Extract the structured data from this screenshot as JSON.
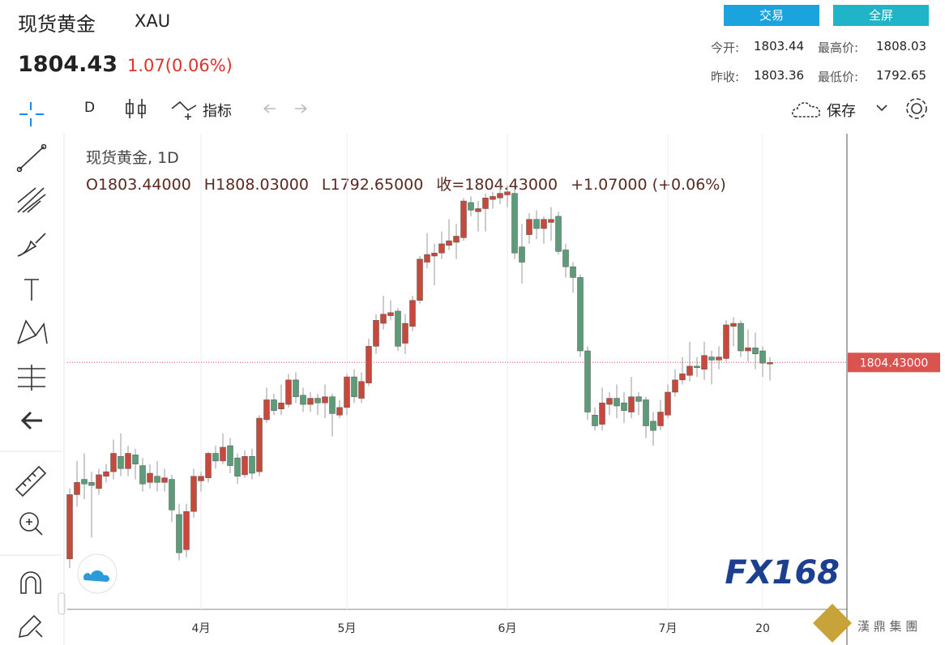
{
  "header": {
    "title": "现货黄金",
    "symbol": "XAU",
    "price": "1804.43",
    "change": "1.07(0.06%)",
    "buttons": [
      "交易",
      "全屏"
    ],
    "stats": [
      [
        "今开:",
        "1803.44",
        "最高价:",
        "1808.03"
      ],
      [
        "昨收:",
        "1803.36",
        "最低价:",
        "1792.65"
      ]
    ]
  },
  "toolbar": {
    "interval": "D",
    "indicators": "指标",
    "save": "保存"
  },
  "watermark": {
    "logo": "FX168",
    "company": "漢 鼎 集 團"
  },
  "chart_data": {
    "type": "candlestick",
    "legend_title": "现货黄金, 1D",
    "ohlc_labels": [
      "O1803.44000",
      "H1808.03000",
      "L1792.65000",
      "收=1804.43000",
      "+1.07000 (+0.06%)"
    ],
    "categories": [
      null,
      null,
      null,
      null,
      null,
      null,
      null,
      null,
      null,
      null,
      null,
      null,
      null,
      null,
      null,
      null,
      null,
      null,
      "4月",
      null,
      null,
      null,
      null,
      null,
      null,
      null,
      null,
      null,
      null,
      null,
      null,
      null,
      null,
      null,
      null,
      null,
      null,
      null,
      "5月",
      null,
      null,
      null,
      null,
      null,
      null,
      null,
      null,
      null,
      null,
      null,
      null,
      null,
      null,
      null,
      null,
      null,
      null,
      null,
      null,
      null,
      "6月",
      null,
      null,
      null,
      null,
      null,
      null,
      null,
      null,
      null,
      null,
      null,
      null,
      null,
      null,
      null,
      null,
      null,
      null,
      null,
      null,
      null,
      "7月",
      null,
      null,
      null,
      null,
      null,
      null,
      null,
      null,
      null,
      null,
      null,
      null,
      "20",
      null
    ],
    "open": [
      1676,
      1718,
      1728,
      1726,
      1722,
      1730,
      1733,
      1743,
      1735,
      1744,
      1737,
      1726,
      1730,
      1726,
      1728,
      1705,
      1682,
      1707,
      1727,
      1729,
      1745,
      1740,
      1750,
      1742,
      1731,
      1743,
      1733,
      1767,
      1780,
      1774,
      1777,
      1793,
      1783,
      1777,
      1781,
      1778,
      1782,
      1770,
      1775,
      1795,
      1781,
      1791,
      1815,
      1830,
      1835,
      1838,
      1817,
      1828,
      1845,
      1870,
      1874,
      1876,
      1881,
      1883,
      1886,
      1909,
      1903,
      1905,
      1911,
      1912,
      1914,
      1915,
      1880,
      1888,
      1898,
      1892,
      1896,
      1900,
      1878,
      1867,
      1860,
      1812,
      1770,
      1764,
      1777,
      1781,
      1778,
      1772,
      1782,
      1780,
      1766,
      1763,
      1770,
      1785,
      1793,
      1796,
      1802,
      1800,
      1808,
      1806,
      1807,
      1828,
      1830,
      1812,
      1814,
      1812,
      1803.44
    ],
    "high": [
      1722,
      1740,
      1745,
      1733,
      1735,
      1738,
      1754,
      1758,
      1750,
      1748,
      1742,
      1738,
      1740,
      1735,
      1731,
      1712,
      1712,
      1735,
      1733,
      1746,
      1750,
      1758,
      1755,
      1745,
      1747,
      1748,
      1770,
      1788,
      1784,
      1790,
      1797,
      1798,
      1788,
      1785,
      1784,
      1790,
      1784,
      1780,
      1797,
      1800,
      1798,
      1820,
      1836,
      1848,
      1845,
      1840,
      1836,
      1848,
      1874,
      1889,
      1882,
      1890,
      1898,
      1895,
      1912,
      1913,
      1910,
      1915,
      1916,
      1920,
      1920,
      1918,
      1895,
      1902,
      1904,
      1900,
      1906,
      1903,
      1882,
      1870,
      1862,
      1815,
      1775,
      1788,
      1785,
      1790,
      1785,
      1795,
      1785,
      1782,
      1772,
      1780,
      1790,
      1800,
      1808,
      1818,
      1808,
      1818,
      1812,
      1815,
      1832,
      1834,
      1832,
      1826,
      1824,
      1815,
      1808.03
    ],
    "low": [
      1670,
      1710,
      1715,
      1690,
      1718,
      1726,
      1728,
      1730,
      1730,
      1728,
      1720,
      1722,
      1720,
      1720,
      1700,
      1675,
      1677,
      1703,
      1720,
      1726,
      1735,
      1738,
      1732,
      1725,
      1729,
      1728,
      1730,
      1765,
      1770,
      1770,
      1775,
      1778,
      1772,
      1772,
      1770,
      1768,
      1756,
      1768,
      1770,
      1778,
      1778,
      1789,
      1810,
      1826,
      1832,
      1812,
      1810,
      1825,
      1843,
      1866,
      1855,
      1872,
      1878,
      1872,
      1884,
      1900,
      1890,
      1890,
      1905,
      1908,
      1906,
      1872,
      1856,
      1882,
      1885,
      1882,
      1884,
      1875,
      1860,
      1850,
      1808,
      1767,
      1760,
      1760,
      1770,
      1768,
      1765,
      1768,
      1770,
      1755,
      1750,
      1760,
      1768,
      1782,
      1790,
      1792,
      1795,
      1793,
      1790,
      1800,
      1805,
      1815,
      1808,
      1805,
      1800,
      1795,
      1792.65
    ],
    "close": [
      1718,
      1726,
      1725,
      1724,
      1731,
      1733,
      1745,
      1735,
      1745,
      1738,
      1725,
      1732,
      1726,
      1729,
      1708,
      1680,
      1707,
      1730,
      1730,
      1745,
      1740,
      1749,
      1737,
      1730,
      1743,
      1732,
      1768,
      1780,
      1773,
      1778,
      1793,
      1782,
      1777,
      1781,
      1778,
      1782,
      1771,
      1775,
      1795,
      1782,
      1792,
      1815,
      1832,
      1836,
      1837,
      1815,
      1830,
      1845,
      1872,
      1875,
      1876,
      1882,
      1884,
      1887,
      1910,
      1904,
      1905,
      1912,
      1913,
      1915,
      1916,
      1876,
      1870,
      1898,
      1892,
      1898,
      1898,
      1877,
      1867,
      1860,
      1812,
      1772,
      1763,
      1778,
      1781,
      1776,
      1773,
      1782,
      1779,
      1763,
      1760,
      1772,
      1785,
      1793,
      1797,
      1802,
      1801,
      1809,
      1806,
      1808,
      1829,
      1830,
      1812,
      1814,
      1810,
      1804,
      1804.43
    ],
    "up_color": "#c9483c",
    "down_color": "#5d9c78",
    "wick_color": "#9a9a9a",
    "ylim": [
      1643,
      1954
    ],
    "grid": "x",
    "price_line": {
      "value": 1804.43,
      "label": "1804.43000"
    },
    "price_line_color": "#d9534f"
  }
}
